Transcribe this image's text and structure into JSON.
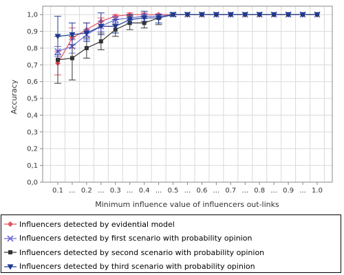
{
  "chart_data": {
    "type": "line",
    "xlabel": "Minimum influence value of influencers out-links",
    "ylabel": "Accuracy",
    "ylim": [
      0,
      1.05
    ],
    "yticks": [
      "0,0",
      "0,1",
      "0,2",
      "0,3",
      "0,4",
      "0,5",
      "0,6",
      "0,7",
      "0,8",
      "0,9",
      "1,0"
    ],
    "categories": [
      "0.1",
      "...",
      "0.2",
      "...",
      "0.3",
      "...",
      "0.4",
      "...",
      "0.5",
      "...",
      "0.6",
      "...",
      "0.7",
      "...",
      "0.8",
      "...",
      "0.9",
      "...",
      "1.0"
    ],
    "grid": true,
    "legend_position": "bottom",
    "series": [
      {
        "name": "Influencers detected by evidential model",
        "color": "#e8505b",
        "marker": "diamond",
        "values": [
          0.71,
          0.86,
          0.91,
          0.96,
          0.99,
          1.0,
          1.0,
          1.0,
          1.0,
          1.0,
          1.0,
          1.0,
          1.0,
          1.0,
          1.0,
          1.0,
          1.0,
          1.0,
          1.0
        ],
        "err_low": [
          0.64,
          0.8,
          0.87,
          0.93,
          0.97,
          0.99,
          0.99,
          0.99,
          1.0,
          1.0,
          1.0,
          1.0,
          1.0,
          1.0,
          1.0,
          1.0,
          1.0,
          1.0,
          1.0
        ],
        "err_high": [
          0.78,
          0.92,
          0.95,
          0.98,
          1.0,
          1.01,
          1.01,
          1.0,
          1.0,
          1.0,
          1.0,
          1.0,
          1.0,
          1.0,
          1.0,
          1.0,
          1.0,
          1.0,
          1.0
        ]
      },
      {
        "name": "Influencers detected by first scenario with probability opinion",
        "color": "#6a6ad6",
        "marker": "x",
        "values": [
          0.78,
          0.81,
          0.88,
          0.93,
          0.97,
          0.98,
          0.99,
          0.99,
          1.0,
          1.0,
          1.0,
          1.0,
          1.0,
          1.0,
          1.0,
          1.0,
          1.0,
          1.0,
          1.0
        ],
        "err_low": [
          0.75,
          0.77,
          0.85,
          0.9,
          0.95,
          0.97,
          0.98,
          0.98,
          1.0,
          1.0,
          1.0,
          1.0,
          1.0,
          1.0,
          1.0,
          1.0,
          1.0,
          1.0,
          1.0
        ],
        "err_high": [
          0.81,
          0.85,
          0.91,
          0.96,
          0.99,
          1.0,
          1.0,
          1.0,
          1.0,
          1.0,
          1.0,
          1.0,
          1.0,
          1.0,
          1.0,
          1.0,
          1.0,
          1.0,
          1.0
        ]
      },
      {
        "name": "Influencers detected by second scenario with probability opinion",
        "color": "#333333",
        "marker": "square",
        "values": [
          0.73,
          0.74,
          0.8,
          0.84,
          0.91,
          0.95,
          0.95,
          0.98,
          1.0,
          1.0,
          1.0,
          1.0,
          1.0,
          1.0,
          1.0,
          1.0,
          1.0,
          1.0,
          1.0
        ],
        "err_low": [
          0.59,
          0.61,
          0.74,
          0.79,
          0.87,
          0.91,
          0.92,
          0.94,
          0.99,
          1.0,
          1.0,
          1.0,
          1.0,
          1.0,
          1.0,
          1.0,
          1.0,
          1.0,
          1.0
        ],
        "err_high": [
          0.87,
          0.87,
          0.86,
          0.89,
          0.94,
          0.99,
          0.99,
          1.0,
          1.0,
          1.0,
          1.0,
          1.0,
          1.0,
          1.0,
          1.0,
          1.0,
          1.0,
          1.0,
          1.0
        ]
      },
      {
        "name": "Influencers detected by third scenario with probability opinion",
        "color": "#1f3a93",
        "marker": "triangle-down",
        "values": [
          0.87,
          0.88,
          0.89,
          0.93,
          0.93,
          0.97,
          0.98,
          0.98,
          1.0,
          1.0,
          1.0,
          1.0,
          1.0,
          1.0,
          1.0,
          1.0,
          1.0,
          1.0,
          1.0
        ],
        "err_low": [
          0.76,
          0.82,
          0.84,
          0.88,
          0.89,
          0.95,
          0.96,
          0.95,
          0.99,
          1.0,
          1.0,
          1.0,
          1.0,
          1.0,
          1.0,
          1.0,
          1.0,
          1.0,
          1.0
        ],
        "err_high": [
          0.99,
          0.95,
          0.95,
          1.01,
          0.97,
          1.0,
          1.02,
          1.0,
          1.01,
          1.0,
          1.0,
          1.0,
          1.0,
          1.0,
          1.0,
          1.0,
          1.0,
          1.0,
          1.0
        ]
      }
    ]
  }
}
